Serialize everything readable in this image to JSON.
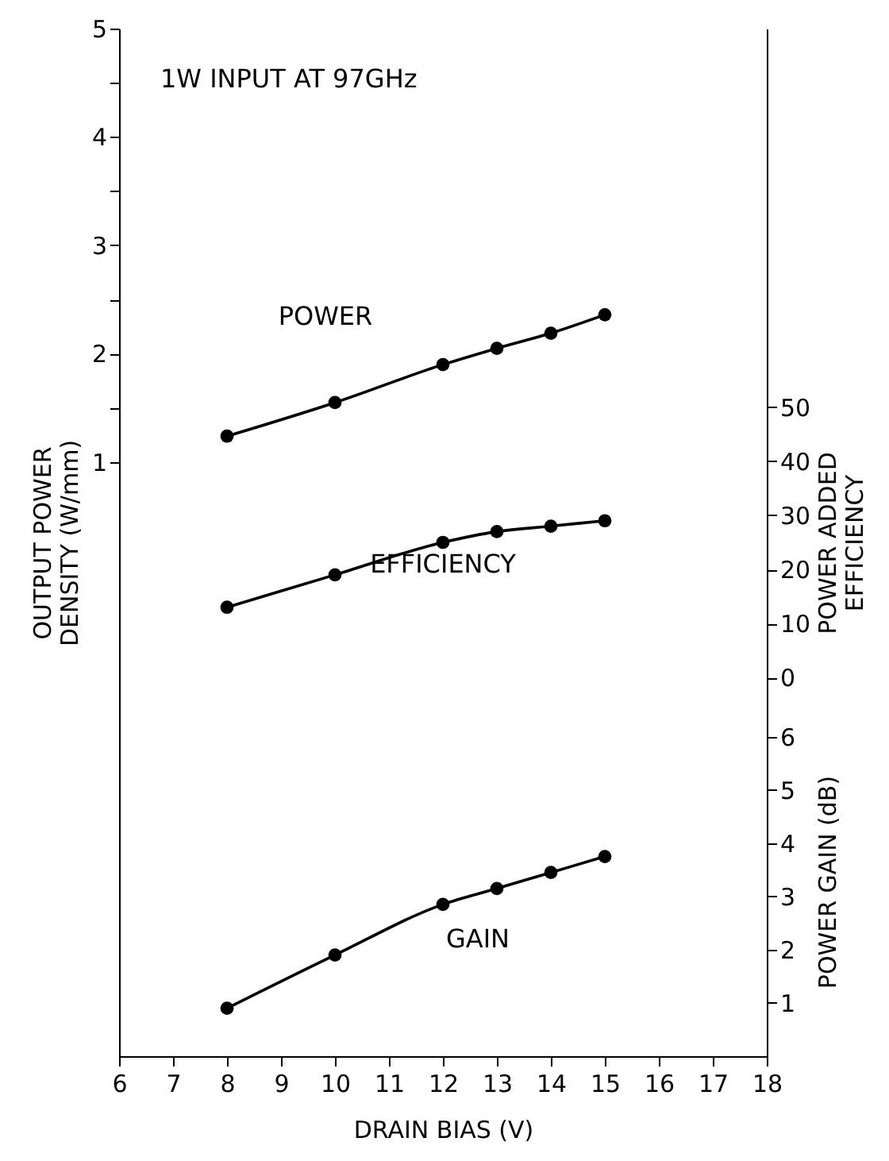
{
  "chart_data": {
    "type": "line",
    "annotations": [
      "1W INPUT AT 97GHz"
    ],
    "xlabel": "DRAIN BIAS (V)",
    "ylabel": "OUTPUT POWER DENSITY (W/mm)",
    "y2label": "POWER ADDED EFFICIENCY",
    "y3label": "POWER GAIN (dB)",
    "x": [
      8,
      10,
      12,
      13,
      14,
      15
    ],
    "xlim": [
      6,
      18
    ],
    "xticks": [
      6,
      7,
      8,
      9,
      10,
      11,
      12,
      13,
      14,
      15,
      16,
      17,
      18
    ],
    "ylim": [
      -4.48,
      5
    ],
    "yticks": [
      1,
      {
        "value": 1.5,
        "label": null
      },
      2,
      {
        "value": 2.5,
        "label": null
      },
      3,
      {
        "value": 3.5,
        "label": null
      },
      4,
      {
        "value": 4.5,
        "label": null
      },
      5
    ],
    "y2lim": [
      -70,
      120
    ],
    "y2ticks": [
      0,
      10,
      20,
      30,
      40,
      50
    ],
    "y3lim": [
      0,
      19.3
    ],
    "y3ticks": [
      1,
      2,
      3,
      4,
      5,
      6
    ],
    "marker": "circle",
    "line_style": "solid",
    "grid": false,
    "series": [
      {
        "name": "POWER",
        "color": "#000000",
        "values": [
          1.24,
          1.55,
          1.9,
          2.05,
          2.19,
          2.36
        ]
      },
      {
        "name": "EFFICIENCY",
        "color": "#000000",
        "axis": "y2",
        "values": [
          13,
          19,
          25,
          27,
          28,
          29
        ]
      },
      {
        "name": "GAIN",
        "color": "#000000",
        "axis": "y3",
        "values": [
          0.9,
          1.9,
          2.85,
          3.15,
          3.45,
          3.75
        ]
      }
    ]
  }
}
